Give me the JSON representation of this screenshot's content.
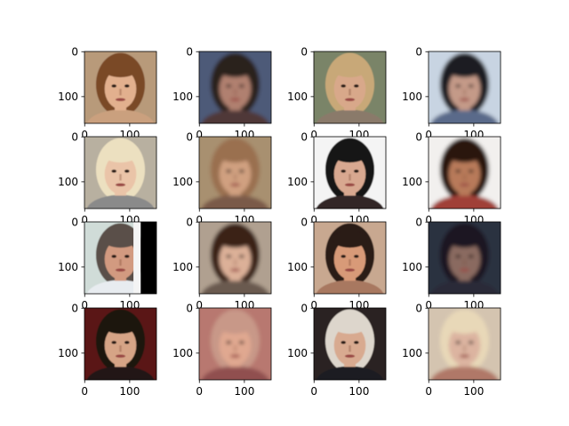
{
  "figure": {
    "rows": 4,
    "cols": 4,
    "image_extent": 160,
    "yticks": [
      "0",
      "100"
    ],
    "xticks": [
      "0",
      "100"
    ],
    "xticks_shown_on_row": 4
  },
  "panels": [
    {
      "row": 1,
      "col": 1,
      "type": "real",
      "description": "young woman, long brown hair, smiling",
      "palette": {
        "bg": "#b89a7a",
        "hair": "#7a4a28",
        "skin": "#e2b08e",
        "clothes": "#caa07e"
      }
    },
    {
      "row": 1,
      "col": 2,
      "type": "generated",
      "description": "blurry man, dark hair",
      "palette": {
        "bg": "#4d5a78",
        "hair": "#2a201c",
        "skin": "#b08070",
        "clothes": "#503838"
      }
    },
    {
      "row": 1,
      "col": 3,
      "type": "real",
      "description": "woman, blonde hair pulled back",
      "palette": {
        "bg": "#7a8468",
        "hair": "#c8a878",
        "skin": "#d8a88a",
        "clothes": "#8a7a6a"
      }
    },
    {
      "row": 1,
      "col": 4,
      "type": "generated",
      "description": "blurry face, dark hair, light background",
      "palette": {
        "bg": "#c8d4e2",
        "hair": "#1c1c24",
        "skin": "#c49a88",
        "clothes": "#5a6a8a"
      }
    },
    {
      "row": 2,
      "col": 1,
      "type": "real",
      "description": "woman, platinum blonde hair",
      "palette": {
        "bg": "#b8b0a0",
        "hair": "#ece0c0",
        "skin": "#eac4a8",
        "clothes": "#8a8a8a"
      }
    },
    {
      "row": 2,
      "col": 2,
      "type": "generated",
      "description": "blurry woman, light brown hair",
      "palette": {
        "bg": "#a89070",
        "hair": "#9a7050",
        "skin": "#d0a080",
        "clothes": "#7a5a48"
      }
    },
    {
      "row": 2,
      "col": 3,
      "type": "real",
      "description": "woman, long black hair, smiling",
      "palette": {
        "bg": "#f4f4f4",
        "hair": "#141414",
        "skin": "#d8a890",
        "clothes": "#302828"
      }
    },
    {
      "row": 2,
      "col": 4,
      "type": "generated",
      "description": "man, dark hair, white background",
      "palette": {
        "bg": "#f2f0ee",
        "hair": "#2a1610",
        "skin": "#b87a5a",
        "clothes": "#a04038"
      }
    },
    {
      "row": 3,
      "col": 1,
      "type": "real",
      "description": "older man, white shirt, black panel at right",
      "palette": {
        "bg": "#d0dcd8",
        "hair": "#5a5048",
        "skin": "#d29a80",
        "clothes": "#e8ecf0"
      }
    },
    {
      "row": 3,
      "col": 2,
      "type": "generated",
      "description": "blurry woman, curly brown hair",
      "palette": {
        "bg": "#b0a090",
        "hair": "#3a2218",
        "skin": "#dcb098",
        "clothes": "#6a5a50"
      }
    },
    {
      "row": 3,
      "col": 3,
      "type": "real",
      "description": "woman, dark hair, looking sideways",
      "palette": {
        "bg": "#c8a890",
        "hair": "#2c1a14",
        "skin": "#d89a78",
        "clothes": "#a87860"
      }
    },
    {
      "row": 3,
      "col": 4,
      "type": "generated",
      "description": "blurry dark face",
      "palette": {
        "bg": "#2a3040",
        "hair": "#1c1820",
        "skin": "#8a6a60",
        "clothes": "#2a2a38"
      }
    },
    {
      "row": 4,
      "col": 1,
      "type": "real",
      "description": "young man, dark curly hair, red background",
      "palette": {
        "bg": "#5a1414",
        "hair": "#1c1410",
        "skin": "#d6a486",
        "clothes": "#201818"
      }
    },
    {
      "row": 4,
      "col": 2,
      "type": "generated",
      "description": "blurry pinkish face",
      "palette": {
        "bg": "#b87870",
        "hair": "#c89888",
        "skin": "#e0a890",
        "clothes": "#905050"
      }
    },
    {
      "row": 4,
      "col": 3,
      "type": "real",
      "description": "older man, white hair, dark suit",
      "palette": {
        "bg": "#2a2420",
        "hair": "#ddd6cc",
        "skin": "#d8aa90",
        "clothes": "#1e1e22"
      }
    },
    {
      "row": 4,
      "col": 4,
      "type": "generated",
      "description": "blurry face, light blonde hair",
      "palette": {
        "bg": "#d4c4b0",
        "hair": "#e8d8b8",
        "skin": "#dcb4a0",
        "clothes": "#b07868"
      }
    }
  ]
}
